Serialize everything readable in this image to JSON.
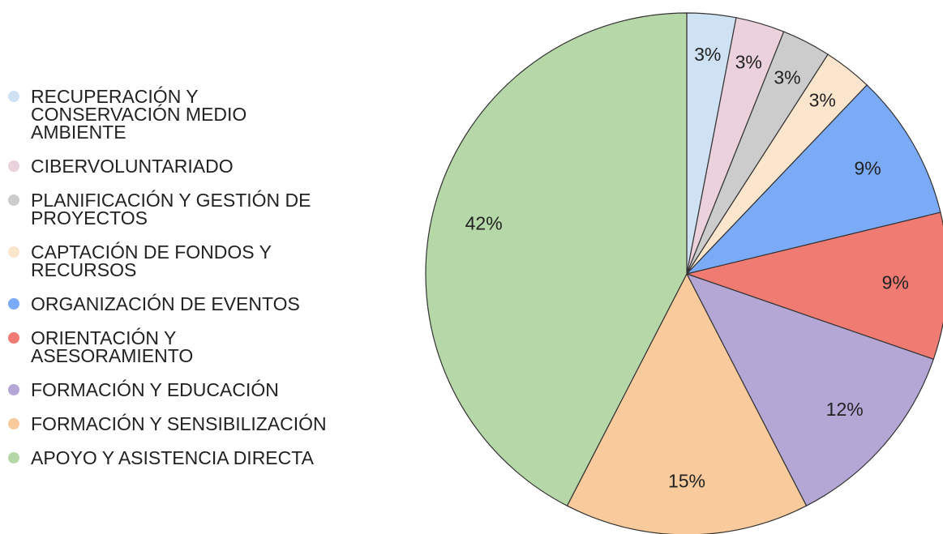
{
  "chart_data": {
    "type": "pie",
    "categories": [
      "RECUPERACIÓN Y CONSERVACIÓN MEDIO AMBIENTE",
      "CIBERVOLUNTARIADO",
      "PLANIFICACIÓN Y GESTIÓN DE PROYECTOS",
      "CAPTACIÓN DE FONDOS Y RECURSOS",
      "ORGANIZACIÓN DE EVENTOS",
      "ORIENTACIÓN Y ASESORAMIENTO",
      "FORMACIÓN Y EDUCACIÓN",
      "FORMACIÓN Y SENSIBILIZACIÓN",
      "APOYO Y ASISTENCIA DIRECTA"
    ],
    "values": [
      3,
      3,
      3,
      3,
      9,
      9,
      12,
      15,
      42
    ],
    "value_labels": [
      "3%",
      "3%",
      "3%",
      "3%",
      "9%",
      "9%",
      "12%",
      "15%",
      "42%"
    ],
    "colors": [
      "#cfe2f3",
      "#ead1dc",
      "#cccccc",
      "#fce5cd",
      "#7baaf7",
      "#f07b72",
      "#b4a7d6",
      "#f9cb9c",
      "#b6d7a8"
    ],
    "legend": "left"
  }
}
